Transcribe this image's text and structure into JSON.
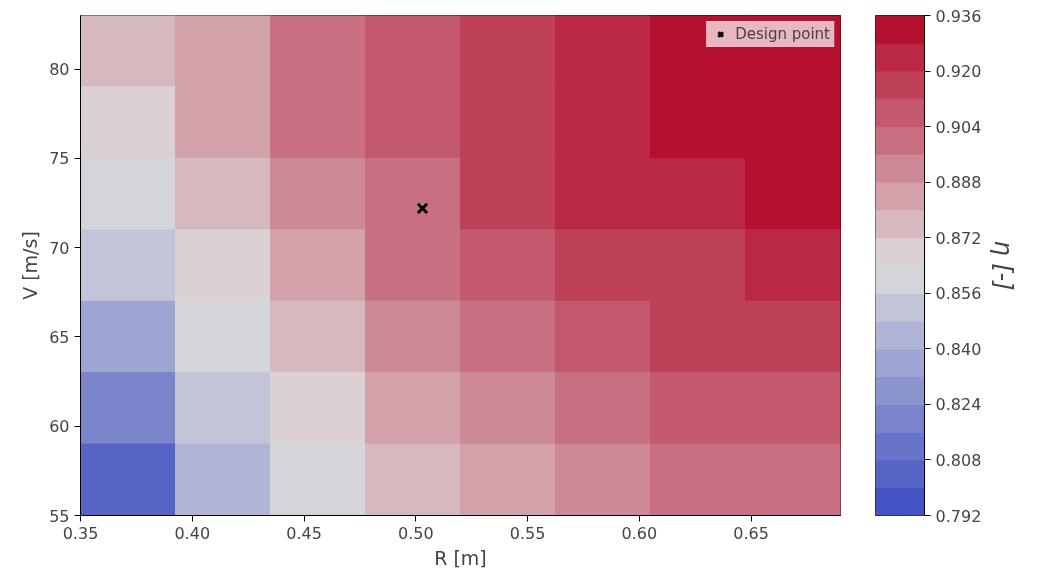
{
  "chart_data": {
    "type": "heatmap",
    "xlabel": "R [m]",
    "ylabel": "V [m/s]",
    "clabel": "η [-]",
    "cells": [
      [
        0.874,
        0.888,
        0.899,
        0.91,
        0.919,
        0.926,
        0.931,
        0.934
      ],
      [
        0.87,
        0.885,
        0.897,
        0.908,
        0.917,
        0.924,
        0.929,
        0.932
      ],
      [
        0.862,
        0.879,
        0.892,
        0.903,
        0.912,
        0.92,
        0.925,
        0.929
      ],
      [
        0.852,
        0.872,
        0.887,
        0.898,
        0.906,
        0.914,
        0.918,
        0.923
      ],
      [
        0.84,
        0.864,
        0.88,
        0.892,
        0.9,
        0.907,
        0.913,
        0.917
      ],
      [
        0.822,
        0.852,
        0.87,
        0.884,
        0.893,
        0.9,
        0.906,
        0.91
      ],
      [
        0.8,
        0.842,
        0.864,
        0.878,
        0.887,
        0.894,
        0.899,
        0.902
      ]
    ],
    "xlim": [
      0.35,
      0.69
    ],
    "xticks": [
      {
        "value": 0.35,
        "label": "0.35"
      },
      {
        "value": 0.4,
        "label": "0.40"
      },
      {
        "value": 0.45,
        "label": "0.45"
      },
      {
        "value": 0.5,
        "label": "0.50"
      },
      {
        "value": 0.55,
        "label": "0.55"
      },
      {
        "value": 0.6,
        "label": "0.60"
      },
      {
        "value": 0.65,
        "label": "0.65"
      }
    ],
    "ylim": [
      55,
      83
    ],
    "yticks": [
      55,
      60,
      65,
      70,
      75,
      80
    ],
    "clim": [
      0.792,
      0.936
    ],
    "cticks": [
      {
        "value": 0.792,
        "label": "0.792"
      },
      {
        "value": 0.808,
        "label": "0.808"
      },
      {
        "value": 0.824,
        "label": "0.824"
      },
      {
        "value": 0.84,
        "label": "0.840"
      },
      {
        "value": 0.856,
        "label": "0.856"
      },
      {
        "value": 0.872,
        "label": "0.872"
      },
      {
        "value": 0.888,
        "label": "0.888"
      },
      {
        "value": 0.904,
        "label": "0.904"
      },
      {
        "value": 0.92,
        "label": "0.920"
      },
      {
        "value": 0.936,
        "label": "0.936"
      }
    ],
    "series": [
      {
        "type": "scatter",
        "name": "Design point",
        "x": [
          0.503
        ],
        "values": [
          72.2
        ],
        "color": "#000000",
        "marker": "cross"
      }
    ],
    "legend": "top right"
  }
}
